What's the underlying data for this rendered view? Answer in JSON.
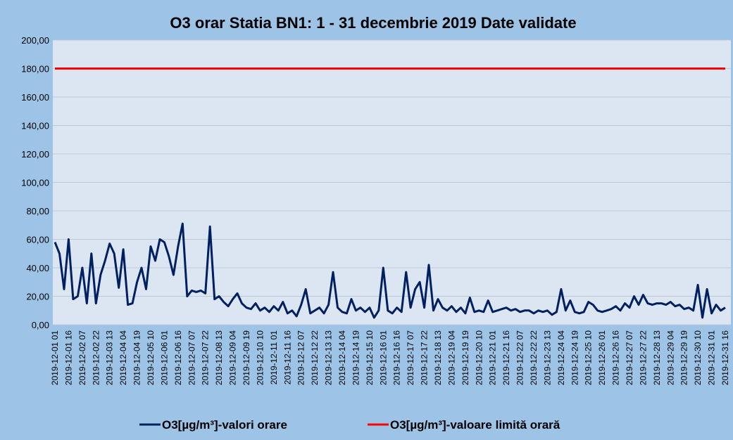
{
  "chart_data": {
    "type": "line",
    "title": "O3 orar Statia BN1: 1 - 31 decembrie 2019 Date validate",
    "categories": [
      "2019-12-01 01",
      null,
      null,
      "2019-12-01 16",
      null,
      null,
      "2019-12-02 07",
      null,
      null,
      "2019-12-02 22",
      null,
      null,
      "2019-12-03 13",
      null,
      null,
      "2019-12-04 04",
      null,
      null,
      "2019-12-04 19",
      null,
      null,
      "2019-12-05 10",
      null,
      null,
      "2019-12-06 01",
      null,
      null,
      "2019-12-06 16",
      null,
      null,
      "2019-12-07 07",
      null,
      null,
      "2019-12-07 22",
      null,
      null,
      "2019-12-08 13",
      null,
      null,
      "2019-12-09 04",
      null,
      null,
      "2019-12-09 19",
      null,
      null,
      "2019-12-10 10",
      null,
      null,
      "2019-12-11 01",
      null,
      null,
      "2019-12-11 16",
      null,
      null,
      "2019-12-12 07",
      null,
      null,
      "2019-12-12 22",
      null,
      null,
      "2019-12-13 13",
      null,
      null,
      "2019-12-14 04",
      null,
      null,
      "2019-12-14 19",
      null,
      null,
      "2019-12-15 10",
      null,
      null,
      "2019-12-16 01",
      null,
      null,
      "2019-12-16 16",
      null,
      null,
      "2019-12-17 07",
      null,
      null,
      "2019-12-17 22",
      null,
      null,
      "2019-12-18 13",
      null,
      null,
      "2019-12-19 04",
      null,
      null,
      "2019-12-19 19",
      null,
      null,
      "2019-12-20 10",
      null,
      null,
      "2019-12-21 01",
      null,
      null,
      "2019-12-21 16",
      null,
      null,
      "2019-12-22 07",
      null,
      null,
      "2019-12-22 22",
      null,
      null,
      "2019-12-23 13",
      null,
      null,
      "2019-12-24 04",
      null,
      null,
      "2019-12-24 19",
      null,
      null,
      "2019-12-25 10",
      null,
      null,
      "2019-12-26 01",
      null,
      null,
      "2019-12-26 16",
      null,
      null,
      "2019-12-27 07",
      null,
      null,
      "2019-12-27 22",
      null,
      null,
      "2019-12-28 13",
      null,
      null,
      "2019-12-29 04",
      null,
      null,
      "2019-12-29 19",
      null,
      null,
      "2019-12-30 10",
      null,
      null,
      "2019-12-31 01",
      null,
      null,
      "2019-12-31 16"
    ],
    "series": [
      {
        "name": "O3[µg/m³]-valori orare",
        "color": "#002060",
        "values": [
          58,
          50,
          25,
          60,
          18,
          20,
          40,
          15,
          50,
          15,
          35,
          45,
          57,
          50,
          26,
          53,
          14,
          15,
          30,
          40,
          25,
          55,
          45,
          60,
          58,
          48,
          35,
          55,
          71,
          20,
          24,
          23,
          24,
          22,
          69,
          18,
          20,
          16,
          13,
          18,
          22,
          15,
          12,
          11,
          15,
          10,
          12,
          9,
          13,
          10,
          16,
          8,
          10,
          6,
          14,
          25,
          8,
          10,
          12,
          8,
          14,
          37,
          12,
          9,
          8,
          18,
          10,
          12,
          9,
          12,
          5,
          10,
          40,
          10,
          8,
          12,
          9,
          37,
          12,
          25,
          30,
          12,
          42,
          10,
          18,
          12,
          10,
          13,
          9,
          12,
          8,
          19,
          9,
          10,
          9,
          17,
          9,
          10,
          11,
          12,
          10,
          11,
          9,
          10,
          10,
          8,
          10,
          9,
          10,
          7,
          9,
          25,
          10,
          17,
          9,
          8,
          9,
          16,
          14,
          10,
          9,
          10,
          11,
          13,
          10,
          15,
          12,
          20,
          14,
          21,
          15,
          14,
          15,
          15,
          14,
          16,
          13,
          14,
          11,
          12,
          10,
          28,
          5,
          25,
          8,
          14,
          10,
          12
        ]
      },
      {
        "name": "O3[µg/m³]-valoare limită orară",
        "color": "#ff0000",
        "values": [
          180,
          180,
          180,
          180,
          180,
          180,
          180,
          180,
          180,
          180,
          180,
          180,
          180,
          180,
          180,
          180,
          180,
          180,
          180,
          180,
          180,
          180,
          180,
          180,
          180,
          180,
          180,
          180,
          180,
          180,
          180,
          180,
          180,
          180,
          180,
          180,
          180,
          180,
          180,
          180,
          180,
          180,
          180,
          180,
          180,
          180,
          180,
          180,
          180,
          180,
          180,
          180,
          180,
          180,
          180,
          180,
          180,
          180,
          180,
          180,
          180,
          180,
          180,
          180,
          180,
          180,
          180,
          180,
          180,
          180,
          180,
          180,
          180,
          180,
          180,
          180,
          180,
          180,
          180,
          180,
          180,
          180,
          180,
          180,
          180,
          180,
          180,
          180,
          180,
          180,
          180,
          180,
          180,
          180,
          180,
          180,
          180,
          180,
          180,
          180,
          180,
          180,
          180,
          180,
          180,
          180,
          180,
          180,
          180,
          180,
          180,
          180,
          180,
          180,
          180,
          180,
          180,
          180,
          180,
          180,
          180,
          180,
          180,
          180,
          180,
          180,
          180,
          180,
          180,
          180,
          180,
          180,
          180,
          180,
          180,
          180,
          180,
          180,
          180,
          180,
          180,
          180,
          180,
          180,
          180,
          180,
          180,
          180
        ]
      }
    ],
    "ylim": [
      0,
      200
    ],
    "yticks": [
      {
        "value": 0,
        "label": "0,00"
      },
      {
        "value": 20,
        "label": "20,00"
      },
      {
        "value": 40,
        "label": "40,00"
      },
      {
        "value": 60,
        "label": "60,00"
      },
      {
        "value": 80,
        "label": "80,00"
      },
      {
        "value": 100,
        "label": "100,00"
      },
      {
        "value": 120,
        "label": "120,00"
      },
      {
        "value": 140,
        "label": "140,00"
      },
      {
        "value": 160,
        "label": "160,00"
      },
      {
        "value": 180,
        "label": "180,00"
      },
      {
        "value": 200,
        "label": "200,00"
      }
    ],
    "grid": true,
    "legend": "bottom"
  }
}
